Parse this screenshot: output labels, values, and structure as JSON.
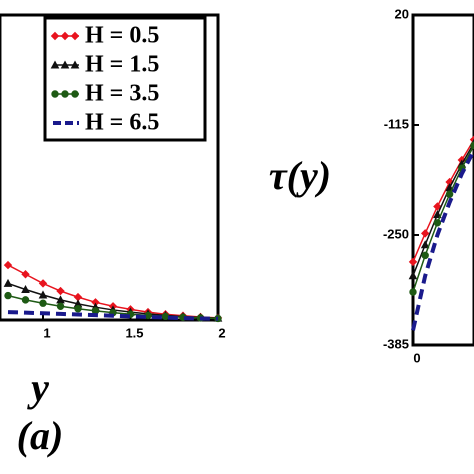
{
  "chart_data": [
    {
      "type": "line",
      "x_label": "y",
      "panel_label": "(a)",
      "legend": "upper right",
      "xlim": [
        0.754,
        2
      ],
      "xticks": [
        1,
        1.5,
        2
      ],
      "ylim": [
        0,
        1
      ],
      "x": [
        0.8,
        0.9,
        1.0,
        1.1,
        1.2,
        1.3,
        1.4,
        1.5,
        1.6,
        1.7,
        1.8,
        1.9,
        2.0
      ],
      "series": [
        {
          "name": "H = 0.5",
          "color": "#e8141e",
          "marker": "diamond",
          "values": [
            0.18,
            0.15,
            0.12,
            0.095,
            0.075,
            0.058,
            0.045,
            0.035,
            0.026,
            0.019,
            0.014,
            0.01,
            0.007
          ]
        },
        {
          "name": "H = 1.5",
          "color": "#111111",
          "marker": "triangle",
          "values": [
            0.12,
            0.1,
            0.082,
            0.066,
            0.053,
            0.042,
            0.033,
            0.026,
            0.02,
            0.015,
            0.011,
            0.008,
            0.006
          ]
        },
        {
          "name": "H = 3.5",
          "color": "#1e5a14",
          "marker": "circle",
          "values": [
            0.08,
            0.066,
            0.055,
            0.045,
            0.037,
            0.03,
            0.024,
            0.019,
            0.015,
            0.012,
            0.009,
            0.007,
            0.005
          ]
        },
        {
          "name": "H = 6.5",
          "color": "#1a1a8c",
          "marker": "dash",
          "values": [
            0.026,
            0.024,
            0.022,
            0.02,
            0.018,
            0.016,
            0.014,
            0.012,
            0.01,
            0.008,
            0.006,
            0.005,
            0.004
          ]
        }
      ]
    },
    {
      "type": "line",
      "y_label": "τ(y)",
      "xlim": [
        0,
        0.25
      ],
      "xticks": [
        0
      ],
      "ylim": [
        -385,
        20
      ],
      "yticks": [
        20,
        -115,
        -250,
        -385
      ],
      "x": [
        0,
        0.05,
        0.1,
        0.15,
        0.2,
        0.25
      ],
      "series": [
        {
          "color": "#e8141e",
          "marker": "diamond",
          "values": [
            -283,
            -248,
            -215,
            -185,
            -158,
            -133
          ]
        },
        {
          "color": "#111111",
          "marker": "triangle",
          "values": [
            -300,
            -262,
            -225,
            -192,
            -163,
            -137
          ]
        },
        {
          "color": "#1e5a14",
          "marker": "circle",
          "values": [
            -320,
            -275,
            -235,
            -200,
            -168,
            -140
          ]
        },
        {
          "color": "#1a1a8c",
          "marker": "dash",
          "values": [
            -367,
            -300,
            -250,
            -210,
            -175,
            -146
          ]
        }
      ]
    }
  ]
}
